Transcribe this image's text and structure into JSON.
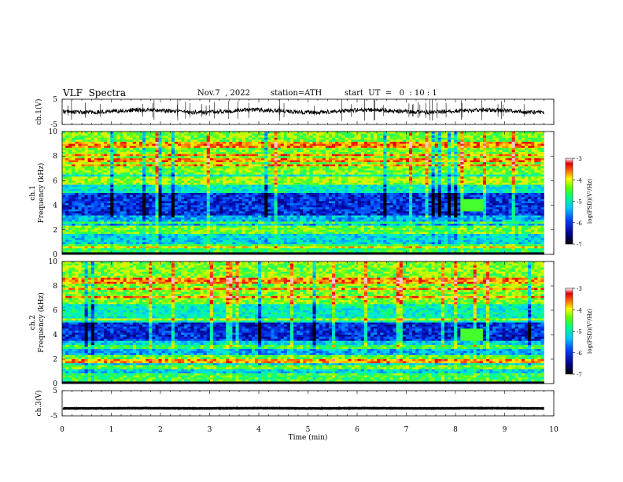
{
  "header": {
    "title": "VLF  Spectra",
    "date": "Nov.7  , 2022",
    "station": "station=ATH",
    "start": "start  UT  =   0  : 10 : 1"
  },
  "chart_data": [
    {
      "type": "line",
      "name": "ch1-waveform",
      "ylabel": "ch.1(V)",
      "yticks": [
        "5",
        "-5"
      ],
      "ylim": [
        -5,
        5
      ],
      "baseline": 0.3,
      "xlim": [
        0,
        10
      ],
      "data_end_min": 9.8
    },
    {
      "type": "heatmap",
      "name": "ch1-spectrogram",
      "ylabel": "ch.1\nFrequency  (kHz)",
      "yticks": [
        "0",
        "2",
        "4",
        "6",
        "8",
        "10"
      ],
      "ylim": [
        0,
        10
      ],
      "xlim": [
        0,
        10
      ],
      "colorbar": {
        "label": "log(PSD)(V²/Hz)",
        "ticks": [
          "-3",
          "-4",
          "-5",
          "-6",
          "-7"
        ],
        "range": [
          -7,
          -3
        ]
      }
    },
    {
      "type": "heatmap",
      "name": "ch2-spectrogram",
      "ylabel": "ch.2\nFrequency  (kHz)",
      "yticks": [
        "0",
        "2",
        "4",
        "6",
        "8",
        "10"
      ],
      "ylim": [
        0,
        10
      ],
      "xlim": [
        0,
        10
      ],
      "colorbar": {
        "label": "log(PSD)(V²/Hz)",
        "ticks": [
          "-3",
          "-4",
          "-5",
          "-6",
          "-7"
        ],
        "range": [
          -7,
          -3
        ]
      }
    },
    {
      "type": "line",
      "name": "ch3-waveform",
      "ylabel": "ch.3(V)",
      "yticks": [
        "5",
        "-5"
      ],
      "ylim": [
        -5,
        5
      ],
      "baseline": -2.0,
      "xlim": [
        0,
        10
      ],
      "data_end_min": 9.8
    }
  ],
  "xaxis": {
    "label": "Time  (min)",
    "ticks": [
      "0",
      "1",
      "2",
      "3",
      "4",
      "5",
      "6",
      "7",
      "8",
      "9",
      "10"
    ]
  }
}
